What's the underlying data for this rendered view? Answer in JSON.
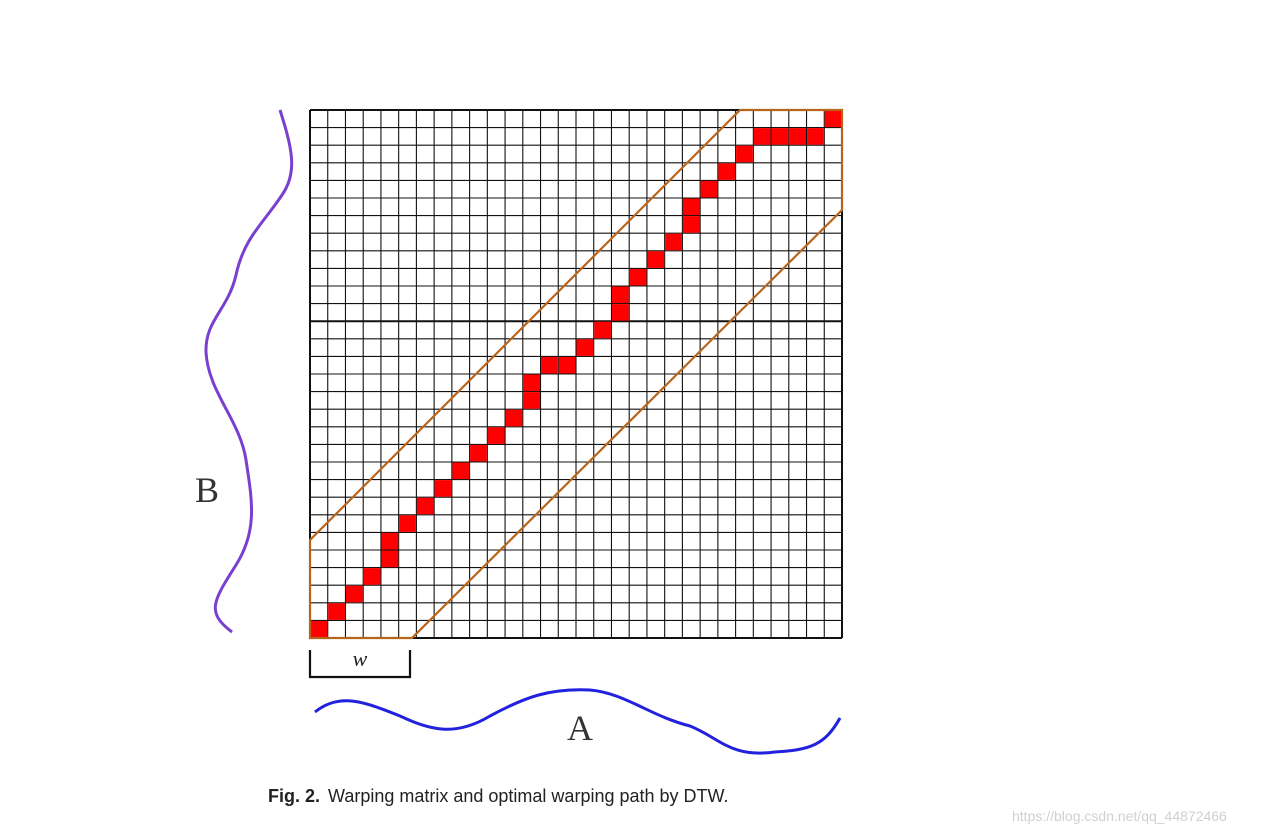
{
  "diagram": {
    "grid": {
      "columns": 30,
      "rows": 30
    },
    "window_label": "w",
    "series_a_label": "A",
    "series_b_label": "B",
    "path_color": "#ff0000",
    "band_color": "#b8651b",
    "series_color_a": "#2222dd",
    "series_color_b": "#7b3fd0",
    "warping_path": [
      [
        0,
        0
      ],
      [
        1,
        1
      ],
      [
        2,
        2
      ],
      [
        3,
        3
      ],
      [
        4,
        4
      ],
      [
        4,
        5
      ],
      [
        5,
        6
      ],
      [
        6,
        7
      ],
      [
        7,
        8
      ],
      [
        8,
        9
      ],
      [
        9,
        10
      ],
      [
        10,
        11
      ],
      [
        11,
        12
      ],
      [
        12,
        13
      ],
      [
        12,
        14
      ],
      [
        13,
        15
      ],
      [
        14,
        15
      ],
      [
        15,
        16
      ],
      [
        16,
        17
      ],
      [
        17,
        18
      ],
      [
        17,
        19
      ],
      [
        18,
        20
      ],
      [
        19,
        21
      ],
      [
        20,
        22
      ],
      [
        21,
        23
      ],
      [
        21,
        24
      ],
      [
        22,
        25
      ],
      [
        23,
        26
      ],
      [
        24,
        27
      ],
      [
        25,
        28
      ],
      [
        26,
        28
      ],
      [
        27,
        28
      ],
      [
        28,
        28
      ],
      [
        29,
        29
      ]
    ]
  },
  "caption": {
    "label": "Fig. 2.",
    "text": "Warping matrix and optimal warping path by DTW."
  },
  "watermark": "https://blog.csdn.net/qq_44872466"
}
